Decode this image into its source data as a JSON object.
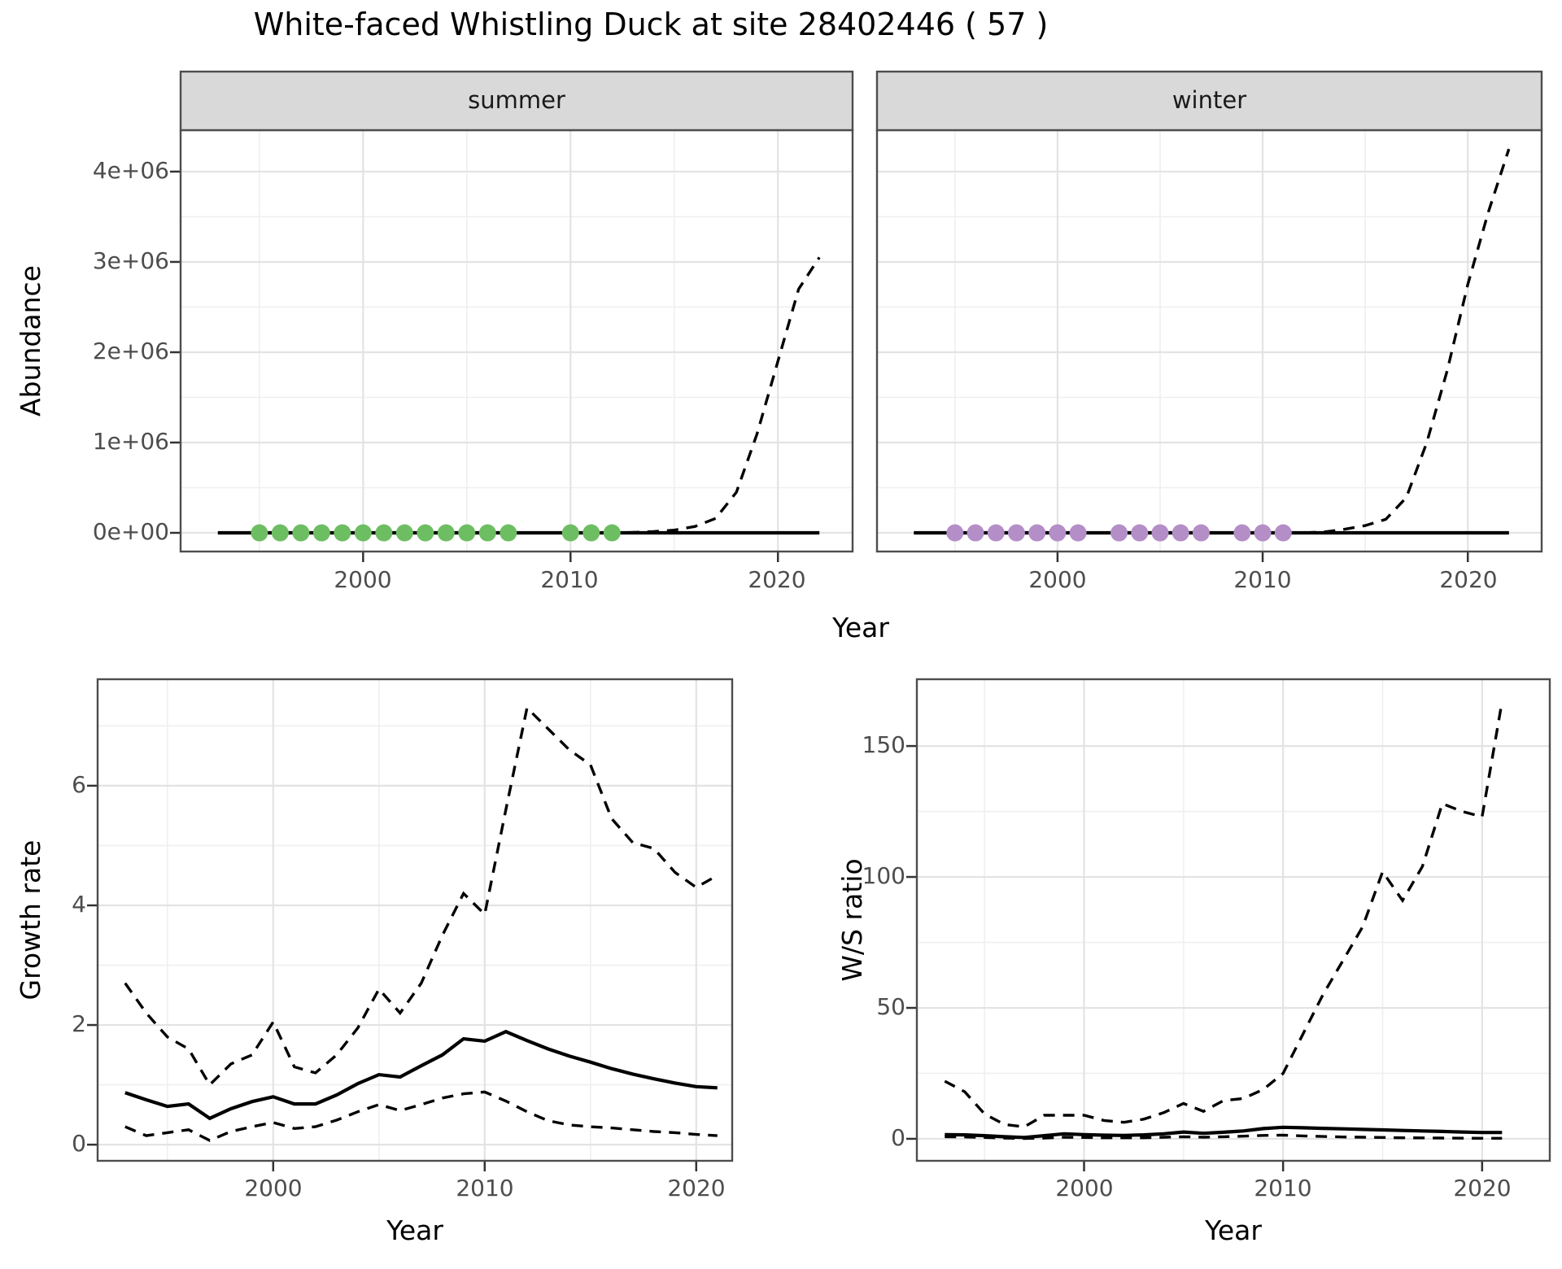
{
  "title": "White-faced Whistling Duck at site 28402446 ( 57 )",
  "colors": {
    "summer_dot": "#6DBE62",
    "winter_dot": "#B48EC7",
    "line": "#000000",
    "strip_bg": "#D9D9D9",
    "panel_border": "#4D4D4D",
    "grid_major": "#E3E3E3",
    "grid_minor": "#EFEFEF",
    "tick": "#333333"
  },
  "chart_data": [
    {
      "type": "line",
      "id": "abundance-by-season",
      "xlabel": "Year",
      "ylabel": "Abundance",
      "x_ticks": [
        2000,
        2010,
        2020
      ],
      "x_tick_labels": [
        "2000",
        "2010",
        "2020"
      ],
      "x_minor_ticks": [
        1995,
        2005,
        2015
      ],
      "y_ticks": [
        0,
        1000000,
        2000000,
        3000000,
        4000000
      ],
      "y_tick_labels": [
        "0e+00",
        "1e+06",
        "2e+06",
        "3e+06",
        "4e+06"
      ],
      "y_minor_ticks": [
        500000,
        1500000,
        2500000,
        3500000
      ],
      "xlim": [
        1991.2,
        2023.6
      ],
      "ylim": [
        -207000,
        4459000
      ],
      "grid": true,
      "legend": "none",
      "years": [
        1993,
        1994,
        1995,
        1996,
        1997,
        1998,
        1999,
        2000,
        2001,
        2002,
        2003,
        2004,
        2005,
        2006,
        2007,
        2008,
        2009,
        2010,
        2011,
        2012,
        2013,
        2014,
        2015,
        2016,
        2017,
        2018,
        2019,
        2020,
        2021,
        2022
      ],
      "facets": [
        {
          "label": "summer",
          "dot_color": "#6DBE62",
          "observed_years": [
            1995,
            1996,
            1997,
            1998,
            1999,
            2000,
            2001,
            2002,
            2003,
            2004,
            2005,
            2006,
            2007,
            2010,
            2011,
            2012
          ],
          "observed_value": 0,
          "median": [
            0,
            0,
            0,
            0,
            0,
            0,
            0,
            0,
            0,
            0,
            0,
            0,
            0,
            0,
            0,
            0,
            0,
            0,
            0,
            0,
            0,
            0,
            0,
            0,
            0,
            0,
            0,
            0,
            0,
            0
          ],
          "ci_low": [
            0,
            0,
            0,
            0,
            0,
            0,
            0,
            0,
            0,
            0,
            0,
            0,
            0,
            0,
            0,
            0,
            0,
            0,
            0,
            0,
            0,
            0,
            0,
            0,
            0,
            0,
            0,
            0,
            0,
            0
          ],
          "ci_high": [
            0,
            0,
            0,
            0,
            0,
            0,
            0,
            0,
            0,
            0,
            0,
            0,
            0,
            0,
            0,
            0,
            0,
            0,
            0,
            0,
            5000,
            15000,
            30000,
            70000,
            160000,
            450000,
            1100000,
            1900000,
            2700000,
            3050000
          ]
        },
        {
          "label": "winter",
          "dot_color": "#B48EC7",
          "observed_years": [
            1995,
            1996,
            1997,
            1998,
            1999,
            2000,
            2001,
            2003,
            2004,
            2005,
            2006,
            2007,
            2009,
            2010,
            2011
          ],
          "observed_value": 0,
          "median": [
            0,
            0,
            0,
            0,
            0,
            0,
            0,
            0,
            0,
            0,
            0,
            0,
            0,
            0,
            0,
            0,
            0,
            0,
            0,
            0,
            0,
            0,
            0,
            0,
            0,
            0,
            0,
            0,
            0,
            0
          ],
          "ci_low": [
            0,
            0,
            0,
            0,
            0,
            0,
            0,
            0,
            0,
            0,
            0,
            0,
            0,
            0,
            0,
            0,
            0,
            0,
            0,
            0,
            0,
            0,
            0,
            0,
            0,
            0,
            0,
            0,
            0,
            0
          ],
          "ci_high": [
            0,
            0,
            0,
            0,
            0,
            0,
            0,
            0,
            0,
            0,
            0,
            0,
            0,
            0,
            0,
            0,
            0,
            0,
            0,
            0,
            10000,
            40000,
            80000,
            150000,
            390000,
            1000000,
            1800000,
            2750000,
            3550000,
            4250000
          ]
        }
      ]
    },
    {
      "type": "line",
      "id": "growth-rate",
      "xlabel": "Year",
      "ylabel": "Growth rate",
      "x_ticks": [
        2000,
        2010,
        2020
      ],
      "x_tick_labels": [
        "2000",
        "2010",
        "2020"
      ],
      "x_minor_ticks": [
        1995,
        2005,
        2015
      ],
      "y_ticks": [
        0,
        2,
        4,
        6
      ],
      "y_tick_labels": [
        "0",
        "2",
        "4",
        "6"
      ],
      "y_minor_ticks": [
        1,
        3,
        5,
        7
      ],
      "xlim": [
        1991.7,
        2021.7
      ],
      "ylim": [
        -0.27,
        7.78
      ],
      "grid": true,
      "legend": "none",
      "years": [
        1993,
        1994,
        1995,
        1996,
        1997,
        1998,
        1999,
        2000,
        2001,
        2002,
        2003,
        2004,
        2005,
        2006,
        2007,
        2008,
        2009,
        2010,
        2011,
        2012,
        2013,
        2014,
        2015,
        2016,
        2017,
        2018,
        2019,
        2020,
        2021
      ],
      "median": [
        0.87,
        0.75,
        0.64,
        0.68,
        0.44,
        0.6,
        0.72,
        0.8,
        0.68,
        0.68,
        0.83,
        1.02,
        1.17,
        1.13,
        1.32,
        1.5,
        1.77,
        1.73,
        1.89,
        1.74,
        1.6,
        1.48,
        1.38,
        1.27,
        1.18,
        1.1,
        1.03,
        0.97,
        0.95
      ],
      "ci_low": [
        0.3,
        0.15,
        0.2,
        0.25,
        0.07,
        0.22,
        0.3,
        0.37,
        0.27,
        0.3,
        0.41,
        0.55,
        0.67,
        0.57,
        0.67,
        0.78,
        0.85,
        0.88,
        0.73,
        0.55,
        0.4,
        0.33,
        0.3,
        0.28,
        0.25,
        0.22,
        0.2,
        0.17,
        0.15
      ],
      "ci_high": [
        2.7,
        2.2,
        1.8,
        1.6,
        1.0,
        1.35,
        1.5,
        2.05,
        1.3,
        1.2,
        1.5,
        1.95,
        2.6,
        2.2,
        2.7,
        3.5,
        4.2,
        3.85,
        5.6,
        7.3,
        6.95,
        6.6,
        6.35,
        5.45,
        5.05,
        4.95,
        4.55,
        4.3,
        4.5
      ]
    },
    {
      "type": "line",
      "id": "ws-ratio",
      "xlabel": "Year",
      "ylabel": "W/S ratio",
      "x_ticks": [
        2000,
        2010,
        2020
      ],
      "x_tick_labels": [
        "2000",
        "2010",
        "2020"
      ],
      "x_minor_ticks": [
        1995,
        2005,
        2015
      ],
      "y_ticks": [
        0,
        50,
        100,
        150
      ],
      "y_tick_labels": [
        "0",
        "50",
        "100",
        "150"
      ],
      "y_minor_ticks": [
        25,
        75,
        125
      ],
      "xlim": [
        1991.6,
        2023.4
      ],
      "ylim": [
        -8.4,
        175.5
      ],
      "grid": true,
      "legend": "none",
      "years": [
        1993,
        1994,
        1995,
        1996,
        1997,
        1998,
        1999,
        2000,
        2001,
        2002,
        2003,
        2004,
        2005,
        2006,
        2007,
        2008,
        2009,
        2010,
        2011,
        2012,
        2013,
        2014,
        2015,
        2016,
        2017,
        2018,
        2019,
        2020,
        2021
      ],
      "median": [
        1.6,
        1.5,
        1.2,
        0.8,
        0.5,
        1.2,
        1.9,
        1.6,
        1.4,
        1.3,
        1.5,
        1.9,
        2.6,
        2.1,
        2.5,
        3.0,
        3.9,
        4.4,
        4.2,
        4.0,
        3.8,
        3.6,
        3.4,
        3.2,
        3.0,
        2.8,
        2.6,
        2.4,
        2.4
      ],
      "ci_low": [
        0.8,
        0.7,
        0.5,
        0.3,
        0.1,
        0.3,
        0.6,
        0.5,
        0.4,
        0.4,
        0.4,
        0.6,
        0.8,
        0.6,
        0.8,
        1.0,
        1.3,
        1.4,
        1.1,
        0.9,
        0.7,
        0.6,
        0.5,
        0.4,
        0.35,
        0.3,
        0.25,
        0.2,
        0.2
      ],
      "ci_high": [
        22,
        18,
        9.5,
        5.5,
        4.6,
        9,
        9,
        9,
        7,
        6.3,
        7.5,
        10,
        13.5,
        10.5,
        14.6,
        15.4,
        18.8,
        25,
        40,
        55,
        68,
        81,
        102,
        91,
        104,
        128,
        125,
        123,
        167
      ]
    }
  ]
}
